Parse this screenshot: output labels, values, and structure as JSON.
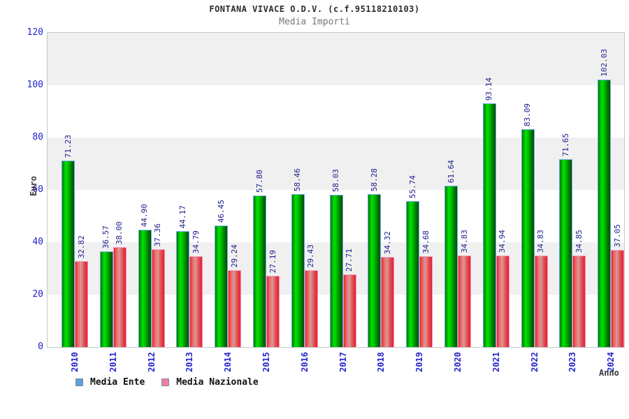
{
  "title": "FONTANA VIVACE O.D.V. (c.f.95118210103)",
  "subtitle": "Media Importi",
  "axes": {
    "y_title": "Euro",
    "x_title": "Anno",
    "y_ticks": [
      "120",
      "100",
      "80",
      "60",
      "40",
      "20",
      "0"
    ]
  },
  "legend": [
    {
      "label": "Media Ente",
      "color": "#5aa2e0"
    },
    {
      "label": "Media Nazionale",
      "color": "#f07dac"
    }
  ],
  "colors": {
    "ente_bar": "#00c400",
    "nazionale_bar": "#e41f30",
    "axis_text": "#2323cd",
    "value_text": "#1c1c8e",
    "band_gray": "#f0f0f0"
  },
  "chart_data": {
    "type": "bar",
    "title": "FONTANA VIVACE O.D.V. (c.f.95118210103)",
    "subtitle": "Media Importi",
    "xlabel": "Anno",
    "ylabel": "Euro",
    "ylim": [
      0,
      120
    ],
    "grid": "alternating horizontal bands every 20 units",
    "legend_position": "bottom-left",
    "categories": [
      "2010",
      "2011",
      "2012",
      "2013",
      "2014",
      "2015",
      "2016",
      "2017",
      "2018",
      "2019",
      "2020",
      "2021",
      "2022",
      "2023",
      "2024"
    ],
    "series": [
      {
        "name": "Media Ente",
        "values": [
          71.23,
          36.57,
          44.9,
          44.17,
          46.45,
          57.8,
          58.46,
          58.03,
          58.28,
          55.74,
          61.64,
          93.14,
          83.09,
          71.65,
          102.03
        ],
        "labels": [
          "71.23",
          "36.57",
          "44.90",
          "44.17",
          "46.45",
          "57.80",
          "58.46",
          "58.03",
          "58.28",
          "55.74",
          "61.64",
          "93.14",
          "83.09",
          "71.65",
          "102.03"
        ]
      },
      {
        "name": "Media Nazionale",
        "values": [
          32.82,
          38.0,
          37.36,
          34.79,
          29.24,
          27.19,
          29.43,
          27.71,
          34.32,
          34.68,
          34.83,
          34.94,
          34.83,
          34.85,
          37.05
        ],
        "labels": [
          "32.82",
          "38.00",
          "37.36",
          "34.79",
          "29.24",
          "27.19",
          "29.43",
          "27.71",
          "34.32",
          "34.68",
          "34.83",
          "34.94",
          "34.83",
          "34.85",
          "37.05"
        ]
      }
    ]
  }
}
